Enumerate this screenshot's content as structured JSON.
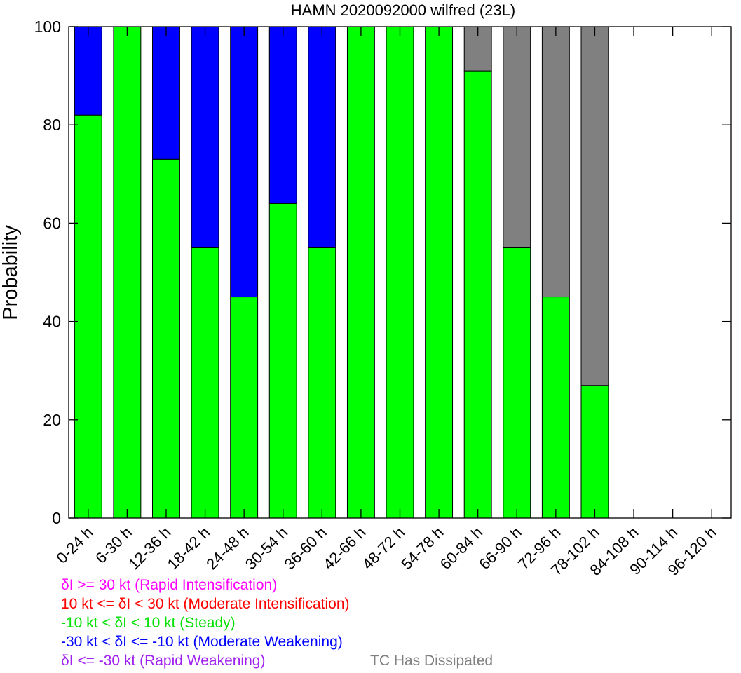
{
  "chart_data": {
    "type": "bar",
    "stacked": true,
    "title": "HAMN 2020092000 wilfred (23L)",
    "ylabel": "Probability",
    "ylim": [
      0,
      100
    ],
    "yticks": [
      0,
      20,
      40,
      60,
      80,
      100
    ],
    "categories": [
      "0-24 h",
      "6-30 h",
      "12-36 h",
      "18-42 h",
      "24-48 h",
      "30-54 h",
      "36-60 h",
      "42-66 h",
      "48-72 h",
      "54-78 h",
      "60-84 h",
      "66-90 h",
      "72-96 h",
      "78-102 h",
      "84-108 h",
      "90-114 h",
      "96-120 h"
    ],
    "series": [
      {
        "name": "-10 kt < δI < 10 kt (Steady)",
        "color": "#00ff00",
        "values": [
          82,
          100,
          73,
          55,
          45,
          64,
          55,
          100,
          100,
          100,
          91,
          55,
          45,
          27,
          0,
          0,
          0
        ]
      },
      {
        "name": "-30 kt < δI <= -10 kt (Moderate Weakening)",
        "color": "#0000ff",
        "values": [
          18,
          0,
          27,
          45,
          55,
          36,
          45,
          0,
          0,
          0,
          0,
          0,
          0,
          0,
          0,
          0,
          0
        ]
      },
      {
        "name": "TC Has Dissipated",
        "color": "#808080",
        "values": [
          0,
          0,
          0,
          0,
          0,
          0,
          0,
          0,
          0,
          0,
          9,
          45,
          55,
          73,
          0,
          0,
          0
        ]
      }
    ],
    "legend": [
      {
        "text": "δI >= 30 kt (Rapid Intensification)",
        "color": "#ff00ff"
      },
      {
        "text": "10 kt <= δI < 30 kt (Moderate Intensification)",
        "color": "#ff0000"
      },
      {
        "text": "-10 kt < δI < 10 kt (Steady)",
        "color": "#00e000"
      },
      {
        "text": "-30 kt < δI <= -10 kt (Moderate Weakening)",
        "color": "#0000ff"
      },
      {
        "text": "δI <= -30 kt (Rapid Weakening)",
        "color": "#a020f0"
      },
      {
        "text": "TC Has Dissipated",
        "color": "#808080"
      }
    ],
    "legend_placement": "bottom-left",
    "grid": false
  }
}
